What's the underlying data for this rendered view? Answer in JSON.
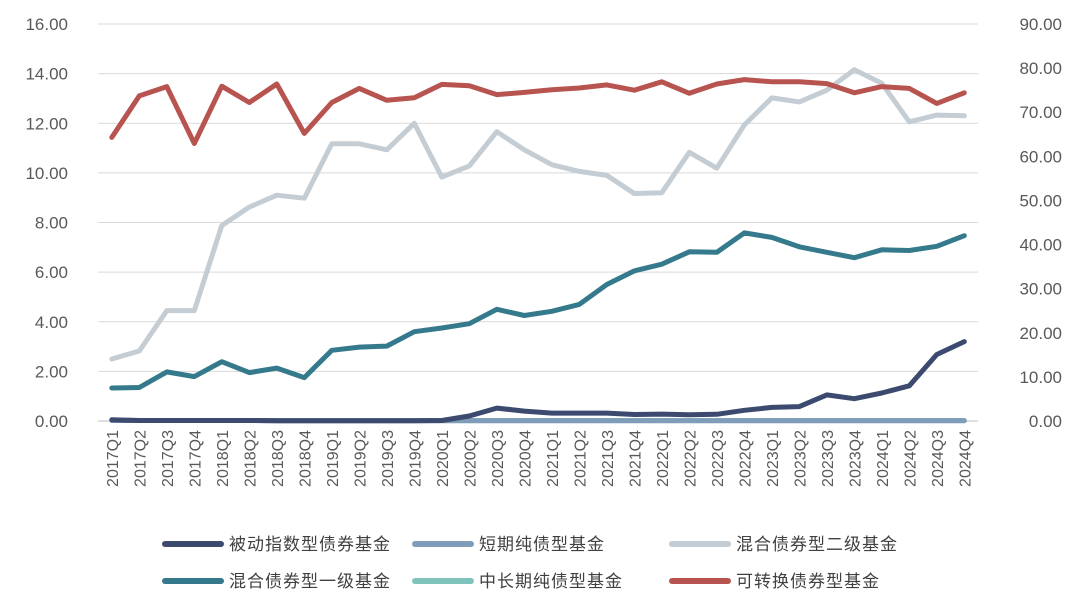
{
  "chart_data": {
    "type": "line",
    "title": "",
    "xlabel": "",
    "ylabel": "",
    "ylim": [
      0,
      16
    ],
    "y2lim": [
      0,
      90
    ],
    "y_ticks": [
      "0.00",
      "2.00",
      "4.00",
      "6.00",
      "8.00",
      "10.00",
      "12.00",
      "14.00",
      "16.00"
    ],
    "y2_ticks": [
      "0.00",
      "10.00",
      "20.00",
      "30.00",
      "40.00",
      "50.00",
      "60.00",
      "70.00",
      "80.00",
      "90.00"
    ],
    "grid": true,
    "legend_position": "bottom",
    "categories": [
      "2017Q1",
      "2017Q2",
      "2017Q3",
      "2017Q4",
      "2018Q1",
      "2018Q2",
      "2018Q3",
      "2018Q4",
      "2019Q1",
      "2019Q2",
      "2019Q3",
      "2019Q4",
      "2020Q1",
      "2020Q2",
      "2020Q3",
      "2020Q4",
      "2021Q1",
      "2021Q2",
      "2021Q3",
      "2021Q4",
      "2022Q1",
      "2022Q2",
      "2022Q3",
      "2022Q4",
      "2023Q1",
      "2023Q2",
      "2023Q3",
      "2023Q4",
      "2024Q1",
      "2024Q2",
      "2024Q3",
      "2024Q4"
    ],
    "series": [
      {
        "name": "被动指数型债券基金",
        "axis": "left",
        "color": "#3b4a6e",
        "values": [
          0.05,
          0.02,
          0.02,
          0.02,
          0.02,
          0.02,
          0.01,
          0.01,
          0.01,
          0.01,
          0.01,
          0.01,
          0.02,
          0.2,
          0.52,
          0.4,
          0.32,
          0.32,
          0.32,
          0.26,
          0.28,
          0.25,
          0.27,
          0.43,
          0.55,
          0.58,
          1.05,
          0.9,
          1.13,
          1.42,
          2.68,
          3.2
        ]
      },
      {
        "name": "短期纯债型基金",
        "axis": "left",
        "color": "#7f9cb8",
        "values": [
          0.02,
          0.02,
          0.02,
          0.02,
          0.02,
          0.02,
          0.01,
          0.01,
          0.01,
          0.01,
          0.01,
          0.01,
          0.01,
          0.01,
          0.01,
          0.01,
          0.01,
          0.01,
          0.01,
          0.01,
          0.01,
          0.01,
          0.01,
          0.01,
          0.01,
          0.01,
          0.01,
          0.01,
          0.01,
          0.01,
          0.01,
          0.01
        ]
      },
      {
        "name": "混合债券型二级基金",
        "axis": "left",
        "color": "#c5cdd4",
        "values": [
          2.5,
          2.82,
          4.45,
          4.45,
          7.88,
          8.62,
          9.1,
          8.98,
          11.17,
          11.17,
          10.93,
          12.0,
          9.83,
          10.28,
          11.66,
          10.93,
          10.33,
          10.06,
          9.9,
          9.17,
          9.2,
          10.83,
          10.19,
          11.93,
          13.02,
          12.86,
          13.33,
          14.16,
          13.61,
          12.06,
          12.33,
          12.3
        ]
      },
      {
        "name": "混合债券型一级基金",
        "axis": "left",
        "color": "#357a8c",
        "values": [
          1.33,
          1.35,
          1.98,
          1.79,
          2.39,
          1.95,
          2.13,
          1.75,
          2.85,
          2.98,
          3.02,
          3.6,
          3.75,
          3.92,
          4.5,
          4.25,
          4.42,
          4.7,
          5.5,
          6.05,
          6.32,
          6.82,
          6.8,
          7.58,
          7.4,
          7.02,
          6.8,
          6.58,
          6.9,
          6.87,
          7.04,
          7.47
        ]
      },
      {
        "name": "中长期纯债型基金",
        "axis": "left",
        "color": "#7ec4bb",
        "values": [
          0.03,
          0.02,
          0.02,
          0.02,
          0.02,
          0.02,
          0.02,
          0.02,
          0.02,
          0.02,
          0.02,
          0.02,
          0.02,
          0.02,
          0.02,
          0.02,
          0.02,
          0.02,
          0.02,
          0.02,
          0.02,
          0.02,
          0.02,
          0.02,
          0.02,
          0.02,
          0.02,
          0.02,
          0.02,
          0.02,
          0.02,
          0.02
        ]
      },
      {
        "name": "可转换债券型基金",
        "axis": "right",
        "color": "#b85450",
        "values": [
          64.3,
          73.7,
          75.8,
          62.9,
          75.9,
          72.2,
          76.4,
          65.2,
          72.2,
          75.4,
          72.7,
          73.3,
          76.3,
          76.0,
          74.0,
          74.5,
          75.1,
          75.5,
          76.2,
          75.0,
          76.9,
          74.3,
          76.4,
          77.4,
          76.9,
          76.9,
          76.5,
          74.4,
          75.8,
          75.4,
          72.0,
          74.4
        ]
      }
    ],
    "legend": [
      [
        "被动指数型债券基金",
        "短期纯债型基金",
        "混合债券型二级基金"
      ],
      [
        "混合债券型一级基金",
        "中长期纯债型基金",
        "可转换债券型基金"
      ]
    ]
  }
}
